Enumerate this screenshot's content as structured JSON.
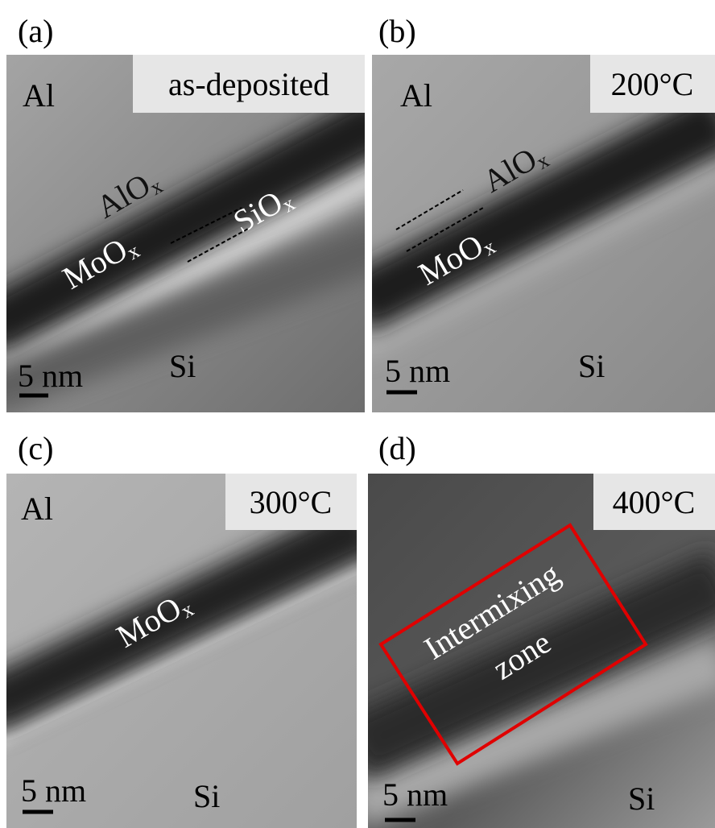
{
  "panels": [
    {
      "letter": "(a)",
      "condition": "as-deposited",
      "metal": "Al",
      "substrate": "Si",
      "scale": "5 nm",
      "layers": [
        {
          "main": "AlO",
          "sub": "x"
        },
        {
          "main": "MoO",
          "sub": "x"
        },
        {
          "main": "SiO",
          "sub": "x"
        }
      ]
    },
    {
      "letter": "(b)",
      "condition": "200°C",
      "metal": "Al",
      "substrate": "Si",
      "scale": "5 nm",
      "layers": [
        {
          "main": "AlO",
          "sub": "x"
        },
        {
          "main": "MoO",
          "sub": "x"
        }
      ]
    },
    {
      "letter": "(c)",
      "condition": "300°C",
      "metal": "Al",
      "substrate": "Si",
      "scale": "5 nm",
      "layers": [
        {
          "main": "MoO",
          "sub": "x"
        }
      ]
    },
    {
      "letter": "(d)",
      "condition": "400°C",
      "substrate": "Si",
      "scale": "5 nm",
      "zone": [
        "Intermixing",
        "zone"
      ]
    }
  ]
}
